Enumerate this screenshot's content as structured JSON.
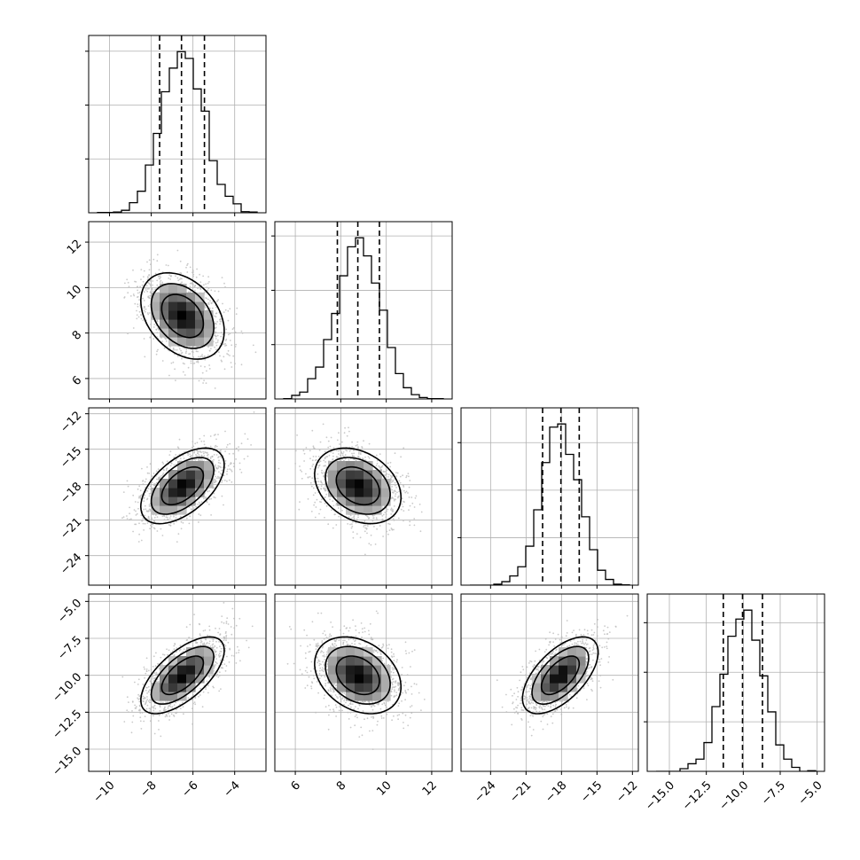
{
  "chart_data": {
    "type": "corner",
    "title": "",
    "parameters": [
      {
        "index": 0,
        "range": [
          -11,
          -2.5
        ],
        "ticks": [
          -10,
          -8,
          -6,
          -4
        ],
        "tick_labels": [
          "−10",
          "−8",
          "−6",
          "−4"
        ],
        "quantiles": [
          -7.6,
          -6.55,
          -5.45
        ],
        "mean": -6.5,
        "sd": 1.0
      },
      {
        "index": 1,
        "range": [
          5.1,
          12.9
        ],
        "ticks": [
          6,
          8,
          10,
          12
        ],
        "tick_labels": [
          "6",
          "8",
          "10",
          "12"
        ],
        "quantiles": [
          7.85,
          8.75,
          9.7
        ],
        "mean": 8.75,
        "sd": 0.95
      },
      {
        "index": 2,
        "range": [
          -26.5,
          -11.5
        ],
        "ticks": [
          -24,
          -21,
          -18,
          -15,
          -12
        ],
        "tick_labels": [
          "−24",
          "−21",
          "−18",
          "−15",
          "−12"
        ],
        "quantiles": [
          -19.6,
          -18.05,
          -16.5
        ],
        "mean": -18.1,
        "sd": 1.6
      },
      {
        "index": 3,
        "range": [
          -16.5,
          -4.5
        ],
        "ticks": [
          -15.0,
          -12.5,
          -10.0,
          -7.5,
          -5.0
        ],
        "tick_labels": [
          "−15.0",
          "−12.5",
          "−10.0",
          "−7.5",
          "−5.0"
        ],
        "quantiles": [
          -11.35,
          -10.05,
          -8.7
        ],
        "mean": -10.0,
        "sd": 1.3
      }
    ],
    "correlations": {
      "1-0": -0.35,
      "2-0": 0.55,
      "2-1": -0.3,
      "3-0": 0.65,
      "3-1": -0.3,
      "3-2": 0.6
    },
    "contour_levels_sigma": [
      1.0,
      1.5,
      2.0
    ],
    "grid": true,
    "colors": {
      "line": "#000000",
      "points": "#bdbdbd",
      "grid": "#b0b0b0",
      "shade_dark": "#000000",
      "shade_light": "#ffffff"
    }
  }
}
